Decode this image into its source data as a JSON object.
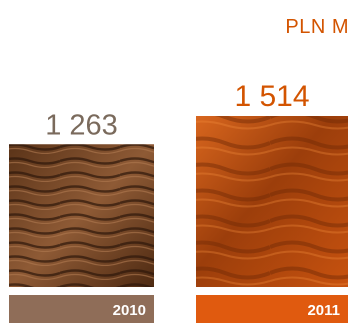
{
  "chart_data": {
    "type": "bar",
    "unit": "PLN M",
    "categories": [
      "2010",
      "2011"
    ],
    "values": [
      1263,
      1514
    ],
    "value_labels": [
      "1 263",
      "1 514"
    ],
    "ylim": [
      0,
      1514
    ],
    "title": "",
    "xlabel": "",
    "ylabel": "",
    "grid": false,
    "legend": "none",
    "colors": {
      "bar_2010": "#7a4a2e",
      "bar_2011": "#c6520f",
      "label_bg_2010": "#8f6d58",
      "label_bg_2011": "#e05a0f",
      "value_2010": "#7a6a5c",
      "value_2011": "#d35400",
      "category_text": "#ffffff"
    }
  }
}
